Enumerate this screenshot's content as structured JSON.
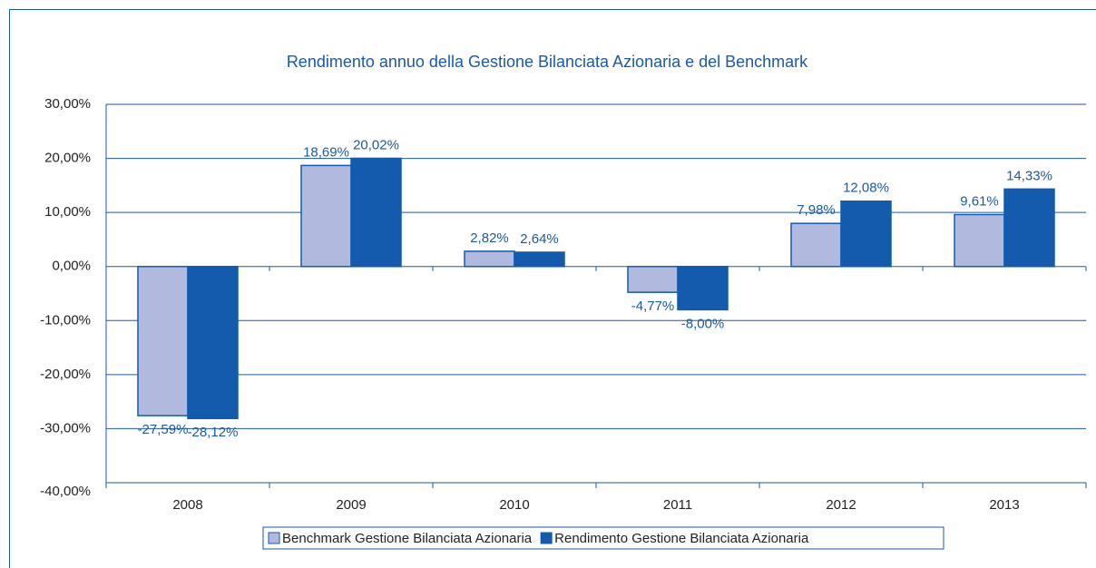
{
  "chart_data": {
    "type": "bar",
    "title": "Rendimento annuo della Gestione Bilanciata Azionaria e del Benchmark",
    "categories": [
      "2008",
      "2009",
      "2010",
      "2011",
      "2012",
      "2013"
    ],
    "series": [
      {
        "name": "Benchmark Gestione Bilanciata Azionaria",
        "color": "#b2b9de",
        "values": [
          -27.59,
          18.69,
          2.82,
          -4.77,
          7.98,
          9.61
        ],
        "value_labels": [
          "-27,59%",
          "18,69%",
          "2,82%",
          "-4,77%",
          "7,98%",
          "9,61%"
        ]
      },
      {
        "name": "Rendimento Gestione Bilanciata Azionaria",
        "color": "#145aad",
        "values": [
          -28.12,
          20.02,
          2.64,
          -8.0,
          12.08,
          14.33
        ],
        "value_labels": [
          "-28,12%",
          "20,02%",
          "2,64%",
          "-8,00%",
          "12,08%",
          "14,33%"
        ]
      }
    ],
    "ylim": [
      -40,
      30
    ],
    "yticks": [
      {
        "value": -40,
        "label": "-40,00%"
      },
      {
        "value": -30,
        "label": "-30,00%"
      },
      {
        "value": -20,
        "label": "-20,00%"
      },
      {
        "value": -10,
        "label": "-10,00%"
      },
      {
        "value": 0,
        "label": "0,00%"
      },
      {
        "value": 10,
        "label": "10,00%"
      },
      {
        "value": 20,
        "label": "20,00%"
      },
      {
        "value": 30,
        "label": "30,00%"
      }
    ],
    "grid": true,
    "legend": "bottom"
  }
}
